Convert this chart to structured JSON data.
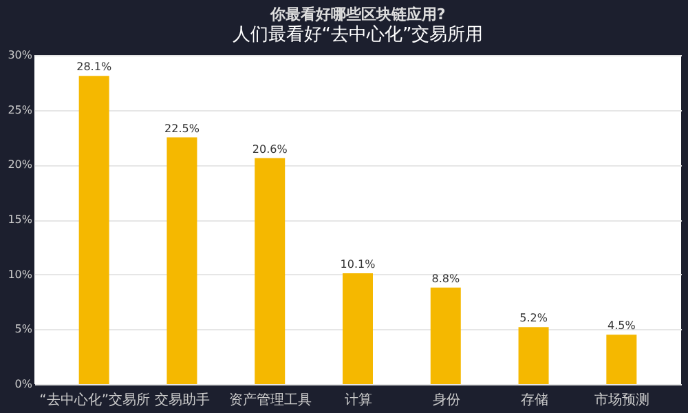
{
  "chart_data": {
    "type": "bar",
    "title": "你最看好哪些区块链应用?",
    "annotations": [
      "人们最看好“去中心化”交易所用"
    ],
    "categories": [
      "“去中心化”交易所",
      "交易助手",
      "资产管理工具",
      "计算",
      "身份",
      "存储",
      "市场预测"
    ],
    "values": [
      28.1,
      22.5,
      20.6,
      10.1,
      8.8,
      5.2,
      4.5
    ],
    "value_labels": [
      "28.1%",
      "22.5%",
      "20.6%",
      "10.1%",
      "8.8%",
      "5.2%",
      "4.5%"
    ],
    "color": "#f5b800",
    "ylim": [
      0,
      30
    ],
    "yticks": [
      {
        "value": 0,
        "label": "0%"
      },
      {
        "value": 5,
        "label": "5%"
      },
      {
        "value": 10,
        "label": "10%"
      },
      {
        "value": 15,
        "label": "15%"
      },
      {
        "value": 20,
        "label": "20%"
      },
      {
        "value": 25,
        "label": "25%"
      },
      {
        "value": 30,
        "label": "30%"
      }
    ],
    "grid": "y"
  }
}
